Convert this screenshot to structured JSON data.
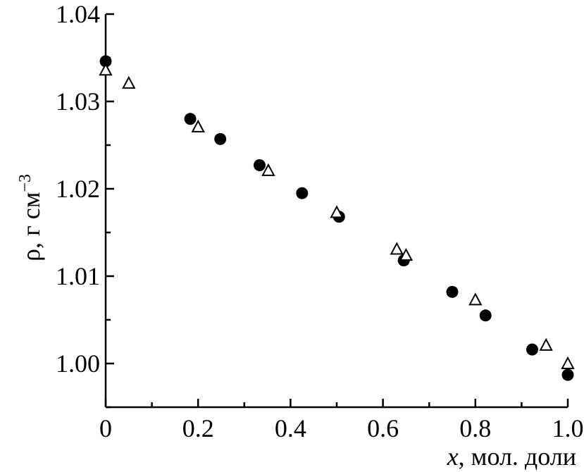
{
  "chart_data": {
    "type": "scatter",
    "title": "",
    "xlabel_var": "x",
    "xlabel_rest": ", мол. доли",
    "ylabel_main": "ρ, г см",
    "ylabel_sup": "−3",
    "xlim": [
      0,
      1.0
    ],
    "ylim": [
      0.995,
      1.04
    ],
    "x_ticks": [
      0,
      0.2,
      0.4,
      0.6,
      0.8,
      1.0
    ],
    "x_tick_labels": [
      "0",
      "0.2",
      "0.4",
      "0.6",
      "0.8",
      "1.0"
    ],
    "y_ticks": [
      1.0,
      1.01,
      1.02,
      1.03,
      1.04
    ],
    "y_tick_labels": [
      "1.00",
      "1.01",
      "1.02",
      "1.03",
      "1.04"
    ],
    "grid": false,
    "series": [
      {
        "marker": "filled-circle",
        "color": "#000000",
        "points": [
          [
            0.0,
            1.0346
          ],
          [
            0.183,
            1.028
          ],
          [
            0.248,
            1.0257
          ],
          [
            0.333,
            1.0227
          ],
          [
            0.425,
            1.0195
          ],
          [
            0.505,
            1.0168
          ],
          [
            0.645,
            1.0118
          ],
          [
            0.75,
            1.0082
          ],
          [
            0.822,
            1.0055
          ],
          [
            0.923,
            1.0016
          ],
          [
            1.0,
            0.9987
          ]
        ]
      },
      {
        "marker": "open-triangle",
        "color": "#000000",
        "points": [
          [
            0.0,
            1.0335
          ],
          [
            0.05,
            1.032
          ],
          [
            0.2,
            1.027
          ],
          [
            0.352,
            1.022
          ],
          [
            0.5,
            1.0172
          ],
          [
            0.63,
            1.013
          ],
          [
            0.65,
            1.0123
          ],
          [
            0.8,
            1.0072
          ],
          [
            0.953,
            1.002
          ],
          [
            1.0,
            0.9999
          ]
        ]
      }
    ]
  }
}
